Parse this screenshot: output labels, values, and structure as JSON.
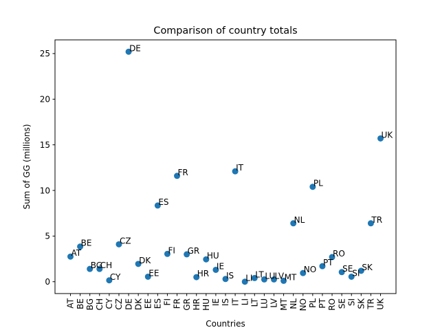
{
  "chart_data": {
    "type": "scatter",
    "title": "Comparison of country totals",
    "xlabel": "Countries",
    "ylabel": "Sum of GG (millions)",
    "ylim": [
      -1.3,
      26.5
    ],
    "yticks": [
      0,
      5,
      10,
      15,
      20,
      25
    ],
    "grid": false,
    "marker_color": "#1f77b4",
    "categories": [
      "AT",
      "BE",
      "BG",
      "CH",
      "CY",
      "CZ",
      "DE",
      "DK",
      "EE",
      "ES",
      "FI",
      "FR",
      "GR",
      "HR",
      "HU",
      "IE",
      "IS",
      "IT",
      "LI",
      "LT",
      "LU",
      "LV",
      "MT",
      "NL",
      "NO",
      "PL",
      "PT",
      "RO",
      "SE",
      "SI",
      "SK",
      "TR",
      "UK"
    ],
    "values": [
      2.75,
      3.85,
      1.4,
      1.4,
      0.15,
      4.1,
      25.2,
      1.95,
      0.55,
      8.35,
      3.05,
      11.6,
      3.0,
      0.5,
      2.45,
      1.3,
      0.3,
      12.1,
      0.0,
      0.4,
      0.25,
      0.25,
      0.1,
      6.4,
      0.95,
      10.4,
      1.7,
      2.7,
      1.05,
      0.55,
      1.2,
      6.4,
      15.7
    ]
  }
}
